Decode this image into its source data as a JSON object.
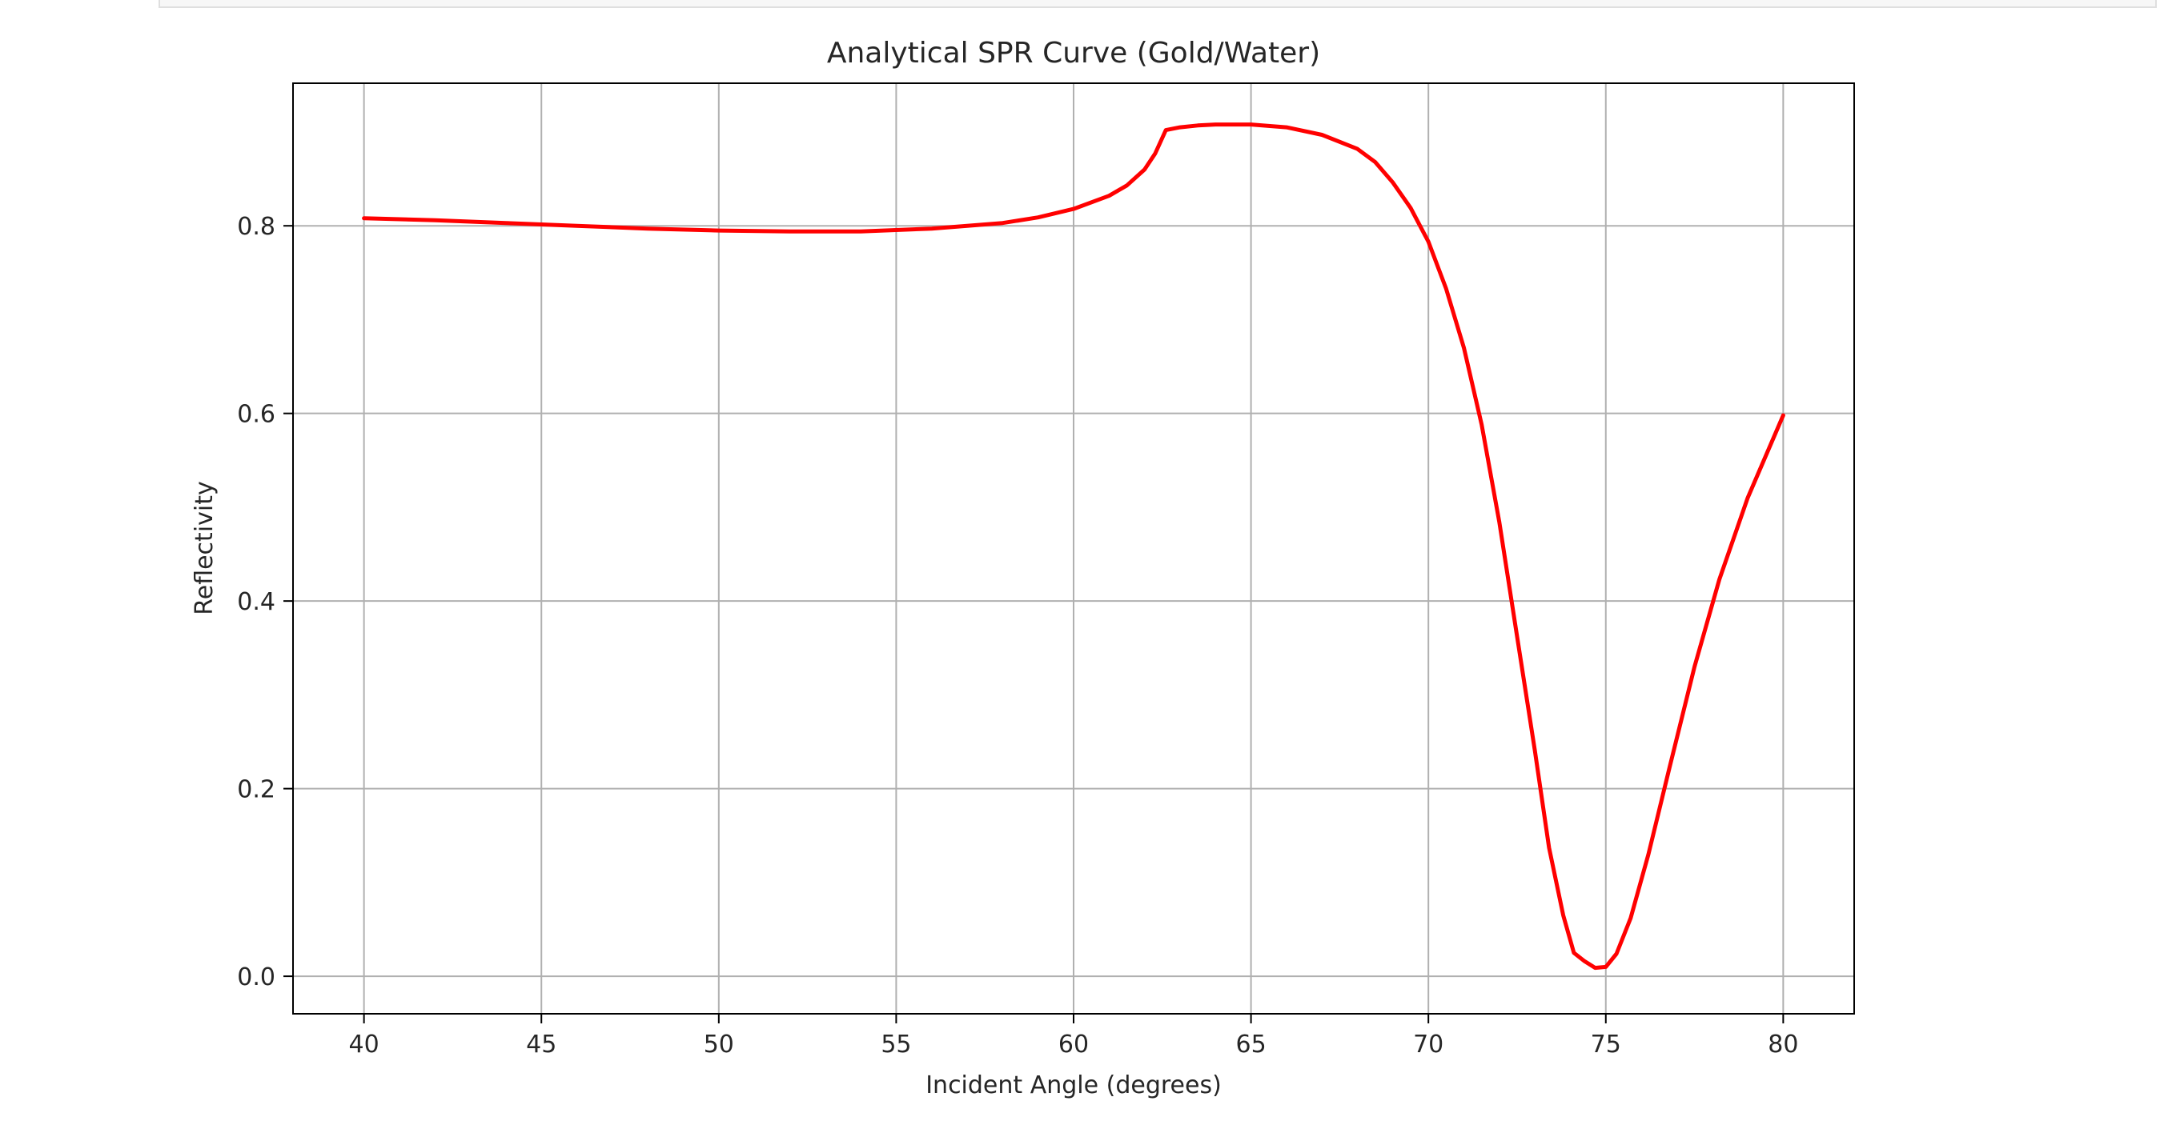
{
  "chart_data": {
    "type": "line",
    "title": "Analytical SPR Curve (Gold/Water)",
    "xlabel": "Incident Angle (degrees)",
    "ylabel": "Reflectivity",
    "xlim": [
      38,
      82
    ],
    "ylim": [
      -0.04,
      0.952
    ],
    "xticks": [
      40,
      45,
      50,
      55,
      60,
      65,
      70,
      75,
      80
    ],
    "yticks": [
      0.0,
      0.2,
      0.4,
      0.6,
      0.8
    ],
    "x_tick_labels": [
      "40",
      "45",
      "50",
      "55",
      "60",
      "65",
      "70",
      "75",
      "80"
    ],
    "y_tick_labels": [
      "0.0",
      "0.2",
      "0.4",
      "0.6",
      "0.8"
    ],
    "grid": true,
    "line_color": "#ff0000",
    "grid_color": "#b0b0b0",
    "series": [
      {
        "x": [
          40,
          42,
          44,
          46,
          48,
          50,
          52,
          54,
          56,
          58,
          59,
          60,
          61,
          61.5,
          62,
          62.3,
          62.6,
          63,
          63.5,
          64,
          65,
          66,
          67,
          68,
          68.5,
          69,
          69.5,
          70,
          70.5,
          71,
          71.5,
          72,
          72.5,
          73,
          73.4,
          73.8,
          74.1,
          74.4,
          74.7,
          75,
          75.3,
          75.7,
          76.2,
          76.8,
          77.5,
          78.2,
          79,
          80
        ],
        "y": [
          0.808,
          0.806,
          0.803,
          0.8,
          0.797,
          0.795,
          0.794,
          0.794,
          0.797,
          0.803,
          0.809,
          0.818,
          0.832,
          0.843,
          0.86,
          0.877,
          0.902,
          0.905,
          0.907,
          0.908,
          0.908,
          0.905,
          0.897,
          0.882,
          0.868,
          0.846,
          0.819,
          0.783,
          0.733,
          0.67,
          0.588,
          0.484,
          0.362,
          0.241,
          0.137,
          0.065,
          0.025,
          0.016,
          0.009,
          0.01,
          0.024,
          0.062,
          0.13,
          0.223,
          0.33,
          0.423,
          0.51,
          0.598
        ]
      }
    ]
  }
}
